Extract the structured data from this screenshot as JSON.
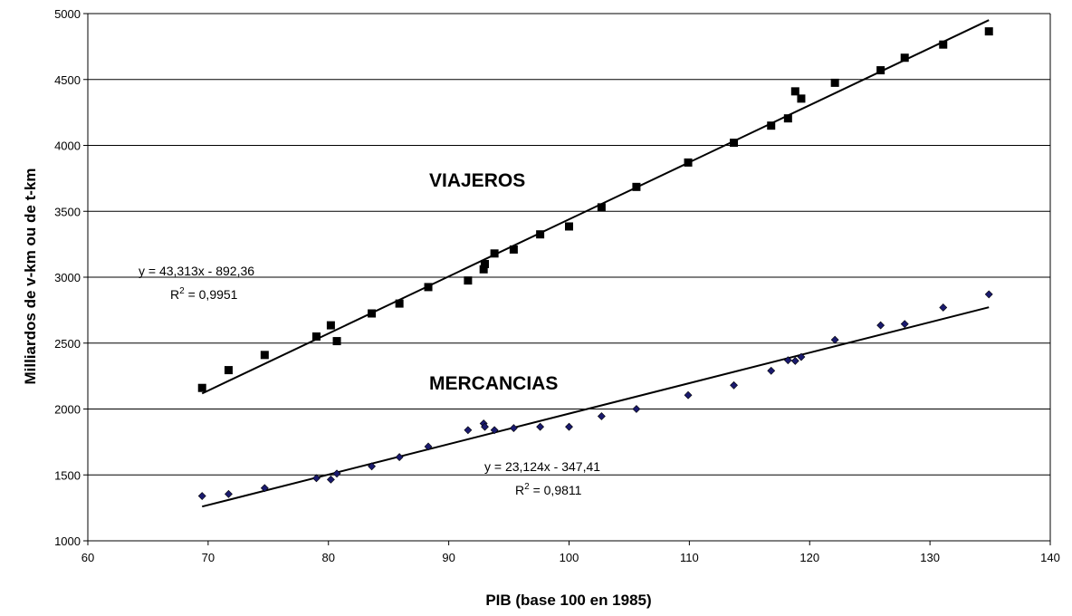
{
  "chart_data": {
    "type": "scatter",
    "xlabel": "PIB (base 100 en 1985)",
    "ylabel": "Milliardos de v-km ou de t-km",
    "xlim": [
      60,
      140
    ],
    "ylim": [
      1000,
      5000
    ],
    "xticks": [
      60,
      70,
      80,
      90,
      100,
      110,
      120,
      130,
      140
    ],
    "yticks": [
      1000,
      1500,
      2000,
      2500,
      3000,
      3500,
      4000,
      4500,
      5000
    ],
    "grid": "horizontal",
    "series": [
      {
        "name": "VIAJEROS",
        "marker": "square",
        "color": "#000000",
        "points": [
          [
            69.5,
            2160
          ],
          [
            71.7,
            2295
          ],
          [
            74.7,
            2410
          ],
          [
            79.0,
            2550
          ],
          [
            80.2,
            2635
          ],
          [
            80.7,
            2515
          ],
          [
            83.6,
            2725
          ],
          [
            85.9,
            2800
          ],
          [
            88.3,
            2925
          ],
          [
            91.6,
            2975
          ],
          [
            92.9,
            3060
          ],
          [
            93.0,
            3100
          ],
          [
            93.8,
            3180
          ],
          [
            95.4,
            3210
          ],
          [
            97.6,
            3325
          ],
          [
            100.0,
            3385
          ],
          [
            102.7,
            3530
          ],
          [
            105.6,
            3685
          ],
          [
            109.9,
            3870
          ],
          [
            113.7,
            4020
          ],
          [
            116.8,
            4150
          ],
          [
            118.2,
            4205
          ],
          [
            118.8,
            4410
          ],
          [
            119.3,
            4355
          ],
          [
            122.1,
            4475
          ],
          [
            125.9,
            4570
          ],
          [
            127.9,
            4665
          ],
          [
            131.1,
            4765
          ],
          [
            134.9,
            4865
          ]
        ],
        "trendline": {
          "slope": 43.313,
          "intercept": -892.36,
          "x_range": [
            69.5,
            134.9
          ]
        },
        "equation": "y = 43,313x - 892,36",
        "r2_prefix": "R",
        "r2_exp": "2",
        "r2_value": " = 0,9951"
      },
      {
        "name": "MERCANCIAS",
        "marker": "diamond",
        "color": "#1a1a6e",
        "points": [
          [
            69.5,
            1340
          ],
          [
            71.7,
            1355
          ],
          [
            74.7,
            1400
          ],
          [
            79.0,
            1475
          ],
          [
            80.2,
            1465
          ],
          [
            80.7,
            1510
          ],
          [
            83.6,
            1565
          ],
          [
            85.9,
            1635
          ],
          [
            88.3,
            1715
          ],
          [
            91.6,
            1840
          ],
          [
            92.9,
            1890
          ],
          [
            93.0,
            1865
          ],
          [
            93.8,
            1840
          ],
          [
            95.4,
            1855
          ],
          [
            97.6,
            1865
          ],
          [
            100.0,
            1865
          ],
          [
            102.7,
            1945
          ],
          [
            105.6,
            2000
          ],
          [
            109.9,
            2105
          ],
          [
            113.7,
            2180
          ],
          [
            116.8,
            2290
          ],
          [
            118.2,
            2370
          ],
          [
            118.8,
            2365
          ],
          [
            119.3,
            2395
          ],
          [
            122.1,
            2525
          ],
          [
            125.9,
            2635
          ],
          [
            127.9,
            2645
          ],
          [
            131.1,
            2770
          ],
          [
            134.9,
            2870
          ]
        ],
        "trendline": {
          "slope": 23.124,
          "intercept": -347.41,
          "x_range": [
            69.5,
            134.9
          ]
        },
        "equation": "y = 23,124x - 347,41",
        "r2_prefix": "R",
        "r2_exp": "2",
        "r2_value": " = 0,9811"
      }
    ]
  }
}
